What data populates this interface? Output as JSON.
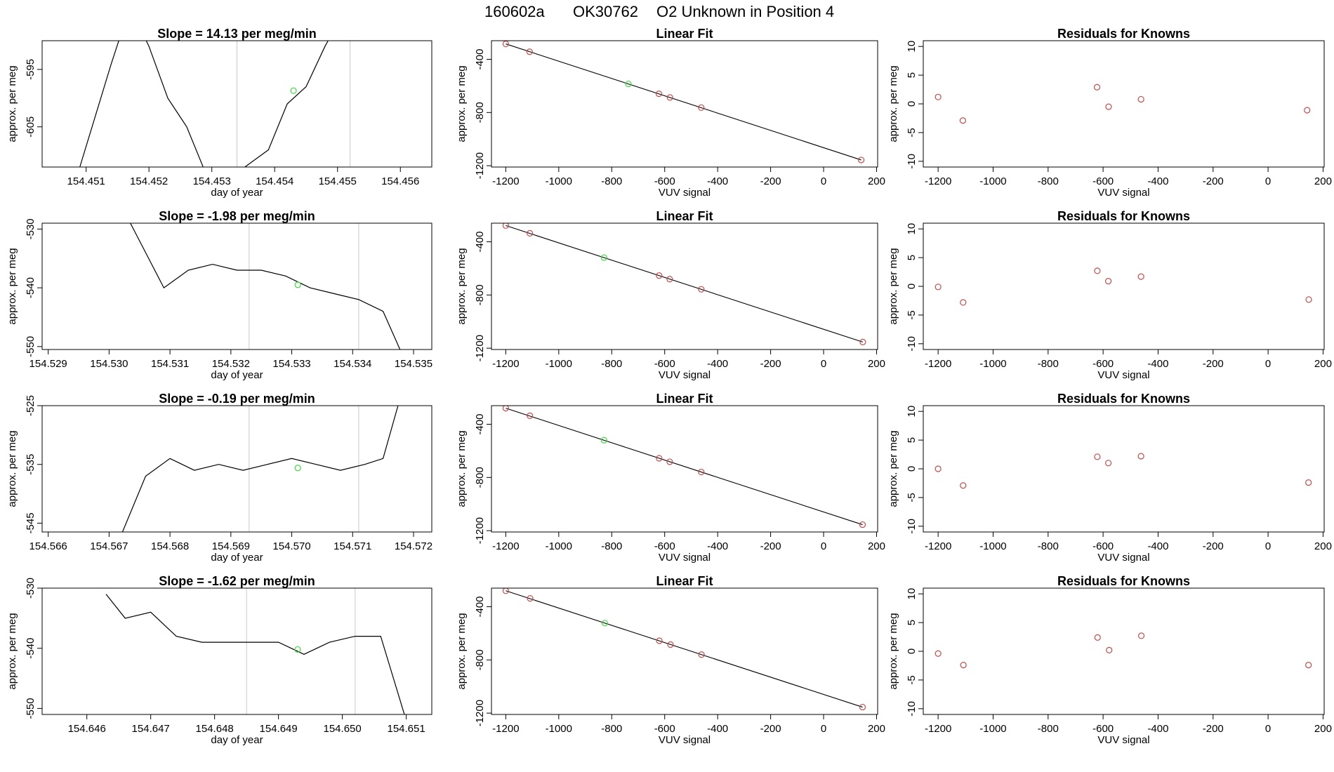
{
  "figure_title": {
    "date_code": "160602a",
    "sample_code": "OK30762",
    "description": "O2 Unknown in Position  4"
  },
  "colors": {
    "trace": "#000000",
    "fit_line": "#000000",
    "known_point": "#c94a4a",
    "unknown_point": "#3ddc3d",
    "marker_line": "#c8c8c8",
    "frame": "#000000"
  },
  "chart_data": [
    {
      "type": "line",
      "row": 1,
      "panel": "time-series",
      "title": "Slope =  14.13  per meg/min",
      "xlabel": "day of year",
      "ylabel": "approx. per meg",
      "xlim": [
        154.4503,
        154.4565
      ],
      "ylim": [
        -612,
        -590
      ],
      "xticks": [
        154.451,
        154.452,
        154.453,
        154.454,
        154.455,
        154.456
      ],
      "xtick_labels": [
        "154.451",
        "154.452",
        "154.453",
        "154.454",
        "154.455",
        "154.456"
      ],
      "yticks": [
        -605,
        -595
      ],
      "ytick_labels": [
        "-605",
        "-595"
      ],
      "markers": [
        154.4534,
        154.4552
      ],
      "unknown_point": {
        "x": 154.4543,
        "y": -598.7
      },
      "trace_x": [
        154.4509,
        154.4514,
        154.4517,
        154.452,
        154.4523,
        154.4526,
        154.4529,
        154.4534,
        154.4539,
        154.4542,
        154.4545,
        154.4548,
        154.4552,
        154.4555
      ],
      "trace_y": [
        -612,
        -594,
        -584,
        -591,
        -600,
        -605,
        -613,
        -613,
        -609,
        -601,
        -598,
        -591,
        -583,
        -580
      ]
    },
    {
      "type": "line",
      "row": 2,
      "panel": "time-series",
      "title": "Slope =  -1.98  per meg/min",
      "xlabel": "day of year",
      "ylabel": "approx. per meg",
      "xlim": [
        154.5289,
        154.5353
      ],
      "ylim": [
        -550.5,
        -529
      ],
      "xticks": [
        154.529,
        154.53,
        154.531,
        154.532,
        154.533,
        154.534,
        154.535
      ],
      "xtick_labels": [
        "154.529",
        "154.530",
        "154.531",
        "154.532",
        "154.533",
        "154.534",
        "154.535"
      ],
      "yticks": [
        -550,
        -540,
        -530
      ],
      "ytick_labels": [
        "-550",
        "-540",
        "-530"
      ],
      "markers": [
        154.5323,
        154.5341
      ],
      "unknown_point": {
        "x": 154.5331,
        "y": -539.5
      },
      "trace_x": [
        154.5302,
        154.5306,
        154.5309,
        154.5313,
        154.5317,
        154.5321,
        154.5325,
        154.5329,
        154.5333,
        154.5337,
        154.5341,
        154.5345,
        154.5348
      ],
      "trace_y": [
        -526,
        -534,
        -540,
        -537,
        -536,
        -537,
        -537,
        -538,
        -540,
        -541,
        -542,
        -544,
        -551
      ]
    },
    {
      "type": "line",
      "row": 3,
      "panel": "time-series",
      "title": "Slope =  -0.19  per meg/min",
      "xlabel": "day of year",
      "ylabel": "approx. per meg",
      "xlim": [
        154.5659,
        154.5723
      ],
      "ylim": [
        -546.5,
        -525
      ],
      "xticks": [
        154.566,
        154.567,
        154.568,
        154.569,
        154.57,
        154.571,
        154.572
      ],
      "xtick_labels": [
        "154.566",
        "154.567",
        "154.568",
        "154.569",
        "154.570",
        "154.571",
        "154.572"
      ],
      "yticks": [
        -545,
        -535,
        -525
      ],
      "ytick_labels": [
        "-545",
        "-535",
        "-525"
      ],
      "markers": [
        154.5693,
        154.5711
      ],
      "unknown_point": {
        "x": 154.5701,
        "y": -535.6
      },
      "trace_x": [
        154.5672,
        154.5676,
        154.568,
        154.5684,
        154.5688,
        154.5692,
        154.5696,
        154.57,
        154.5704,
        154.5708,
        154.5712,
        154.5715,
        154.5718
      ],
      "trace_y": [
        -547,
        -537,
        -534,
        -536,
        -535,
        -536,
        -535,
        -534,
        -535,
        -536,
        -535,
        -534,
        -523
      ]
    },
    {
      "type": "line",
      "row": 4,
      "panel": "time-series",
      "title": "Slope =  -1.62  per meg/min",
      "xlabel": "day of year",
      "ylabel": "approx. per meg",
      "xlim": [
        154.6453,
        154.6514
      ],
      "ylim": [
        -551,
        -530
      ],
      "xticks": [
        154.646,
        154.647,
        154.648,
        154.649,
        154.65,
        154.651
      ],
      "xtick_labels": [
        "154.646",
        "154.647",
        "154.648",
        "154.649",
        "154.650",
        "154.651"
      ],
      "yticks": [
        -550,
        -540,
        -530
      ],
      "ytick_labels": [
        "-550",
        "-540",
        "-530"
      ],
      "markers": [
        154.6485,
        154.6502
      ],
      "unknown_point": {
        "x": 154.6493,
        "y": -540.2
      },
      "trace_x": [
        154.6463,
        154.6466,
        154.647,
        154.6474,
        154.6478,
        154.6482,
        154.6486,
        154.649,
        154.6494,
        154.6498,
        154.6502,
        154.6506,
        154.651
      ],
      "trace_y": [
        -531,
        -535,
        -534,
        -538,
        -539,
        -539,
        -539,
        -539,
        -541,
        -539,
        -538,
        -538,
        -552
      ]
    },
    {
      "type": "scatter",
      "row": 1,
      "panel": "linear-fit",
      "title": "Linear Fit",
      "xlabel": "VUV signal",
      "ylabel": "approx. per meg",
      "xlim": [
        -1254,
        204
      ],
      "ylim": [
        -1210,
        -260
      ],
      "xticks": [
        -1200,
        -1000,
        -800,
        -600,
        -400,
        -200,
        0,
        200
      ],
      "xtick_labels": [
        "-1200",
        "-1000",
        "-800",
        "-600",
        "-400",
        "-200",
        "0",
        "200"
      ],
      "yticks": [
        -1200,
        -800,
        -400
      ],
      "ytick_labels": [
        "-1200",
        "-800",
        "-400"
      ],
      "fit_line": {
        "x": [
          -1200,
          142
        ],
        "y": [
          -284,
          -1157
        ]
      },
      "knowns": {
        "x": [
          -1200,
          -1110,
          -622,
          -580,
          -462,
          142
        ],
        "y": [
          -284,
          -343,
          -659,
          -687,
          -763,
          -1157
        ]
      },
      "unknown": {
        "x": -737,
        "y": -585
      }
    },
    {
      "type": "scatter",
      "row": 2,
      "panel": "linear-fit",
      "title": "Linear Fit",
      "xlabel": "VUV signal",
      "ylabel": "approx. per meg",
      "xlim": [
        -1254,
        204
      ],
      "ylim": [
        -1210,
        -260
      ],
      "xticks": [
        -1200,
        -1000,
        -800,
        -600,
        -400,
        -200,
        0,
        200
      ],
      "xtick_labels": [
        "-1200",
        "-1000",
        "-800",
        "-600",
        "-400",
        "-200",
        "0",
        "200"
      ],
      "yticks": [
        -1200,
        -800,
        -400
      ],
      "ytick_labels": [
        "-1200",
        "-800",
        "-400"
      ],
      "fit_line": {
        "x": [
          -1200,
          148
        ],
        "y": [
          -278,
          -1154
        ]
      },
      "knowns": {
        "x": [
          -1200,
          -1109,
          -621,
          -581,
          -462,
          148
        ],
        "y": [
          -278,
          -336,
          -654,
          -681,
          -757,
          -1154
        ]
      },
      "unknown": {
        "x": -829,
        "y": -519
      }
    },
    {
      "type": "scatter",
      "row": 3,
      "panel": "linear-fit",
      "title": "Linear Fit",
      "xlabel": "VUV signal",
      "ylabel": "approx. per meg",
      "xlim": [
        -1254,
        204
      ],
      "ylim": [
        -1210,
        -260
      ],
      "xticks": [
        -1200,
        -1000,
        -800,
        -600,
        -400,
        -200,
        0,
        200
      ],
      "xtick_labels": [
        "-1200",
        "-1000",
        "-800",
        "-600",
        "-400",
        "-200",
        "0",
        "200"
      ],
      "yticks": [
        -1200,
        -800,
        -400
      ],
      "ytick_labels": [
        "-1200",
        "-800",
        "-400"
      ],
      "fit_line": {
        "x": [
          -1200,
          147
        ],
        "y": [
          -279,
          -1155
        ]
      },
      "knowns": {
        "x": [
          -1200,
          -1109,
          -621,
          -581,
          -462,
          147
        ],
        "y": [
          -279,
          -336,
          -656,
          -682,
          -759,
          -1155
        ]
      },
      "unknown": {
        "x": -829,
        "y": -520
      }
    },
    {
      "type": "scatter",
      "row": 4,
      "panel": "linear-fit",
      "title": "Linear Fit",
      "xlabel": "VUV signal",
      "ylabel": "approx. per meg",
      "xlim": [
        -1254,
        204
      ],
      "ylim": [
        -1210,
        -260
      ],
      "xticks": [
        -1200,
        -1000,
        -800,
        -600,
        -400,
        -200,
        0,
        200
      ],
      "xtick_labels": [
        "-1200",
        "-1000",
        "-800",
        "-600",
        "-400",
        "-200",
        "0",
        "200"
      ],
      "yticks": [
        -1200,
        -800,
        -400
      ],
      "ytick_labels": [
        "-1200",
        "-800",
        "-400"
      ],
      "fit_line": {
        "x": [
          -1200,
          147
        ],
        "y": [
          -280,
          -1155
        ]
      },
      "knowns": {
        "x": [
          -1200,
          -1108,
          -620,
          -578,
          -461,
          147
        ],
        "y": [
          -280,
          -337,
          -656,
          -685,
          -760,
          -1155
        ]
      },
      "unknown": {
        "x": -826,
        "y": -523
      }
    },
    {
      "type": "scatter",
      "row": 1,
      "panel": "residuals",
      "title": "Residuals for Knowns",
      "xlabel": "VUV signal",
      "ylabel": "approx. per meg",
      "xlim": [
        -1254,
        204
      ],
      "ylim": [
        -11,
        11
      ],
      "xticks": [
        -1200,
        -1000,
        -800,
        -600,
        -400,
        -200,
        0,
        200
      ],
      "xtick_labels": [
        "-1200",
        "-1000",
        "-800",
        "-600",
        "-400",
        "-200",
        "0",
        "200"
      ],
      "yticks": [
        -10,
        -5,
        0,
        5,
        10
      ],
      "ytick_labels": [
        "-10",
        "-5",
        "0",
        "5",
        "10"
      ],
      "points": {
        "x": [
          -1200,
          -1110,
          -622,
          -580,
          -462,
          142
        ],
        "y": [
          1.2,
          -2.9,
          2.9,
          -0.5,
          0.8,
          -1.1
        ]
      }
    },
    {
      "type": "scatter",
      "row": 2,
      "panel": "residuals",
      "title": "Residuals for Knowns",
      "xlabel": "VUV signal",
      "ylabel": "approx. per meg",
      "xlim": [
        -1254,
        204
      ],
      "ylim": [
        -11,
        11
      ],
      "xticks": [
        -1200,
        -1000,
        -800,
        -600,
        -400,
        -200,
        0,
        200
      ],
      "xtick_labels": [
        "-1200",
        "-1000",
        "-800",
        "-600",
        "-400",
        "-200",
        "0",
        "200"
      ],
      "yticks": [
        -10,
        -5,
        0,
        5,
        10
      ],
      "ytick_labels": [
        "-10",
        "-5",
        "0",
        "5",
        "10"
      ],
      "points": {
        "x": [
          -1200,
          -1109,
          -621,
          -581,
          -462,
          148
        ],
        "y": [
          -0.1,
          -2.8,
          2.7,
          0.9,
          1.7,
          -2.3
        ]
      }
    },
    {
      "type": "scatter",
      "row": 3,
      "panel": "residuals",
      "title": "Residuals for Knowns",
      "xlabel": "VUV signal",
      "ylabel": "approx. per meg",
      "xlim": [
        -1254,
        204
      ],
      "ylim": [
        -11,
        11
      ],
      "xticks": [
        -1200,
        -1000,
        -800,
        -600,
        -400,
        -200,
        0,
        200
      ],
      "xtick_labels": [
        "-1200",
        "-1000",
        "-800",
        "-600",
        "-400",
        "-200",
        "0",
        "200"
      ],
      "yticks": [
        -10,
        -5,
        0,
        5,
        10
      ],
      "ytick_labels": [
        "-10",
        "-5",
        "0",
        "5",
        "10"
      ],
      "points": {
        "x": [
          -1200,
          -1109,
          -621,
          -581,
          -462,
          147
        ],
        "y": [
          0.0,
          -2.9,
          2.1,
          1.0,
          2.2,
          -2.4
        ]
      }
    },
    {
      "type": "scatter",
      "row": 4,
      "panel": "residuals",
      "title": "Residuals for Knowns",
      "xlabel": "VUV signal",
      "ylabel": "approx. per meg",
      "xlim": [
        -1254,
        204
      ],
      "ylim": [
        -11,
        11
      ],
      "xticks": [
        -1200,
        -1000,
        -800,
        -600,
        -400,
        -200,
        0,
        200
      ],
      "xtick_labels": [
        "-1200",
        "-1000",
        "-800",
        "-600",
        "-400",
        "-200",
        "0",
        "200"
      ],
      "yticks": [
        -10,
        -5,
        0,
        5,
        10
      ],
      "ytick_labels": [
        "-10",
        "-5",
        "0",
        "5",
        "10"
      ],
      "points": {
        "x": [
          -1200,
          -1108,
          -620,
          -578,
          -461,
          147
        ],
        "y": [
          -0.4,
          -2.4,
          2.4,
          0.2,
          2.7,
          -2.4
        ]
      }
    }
  ]
}
